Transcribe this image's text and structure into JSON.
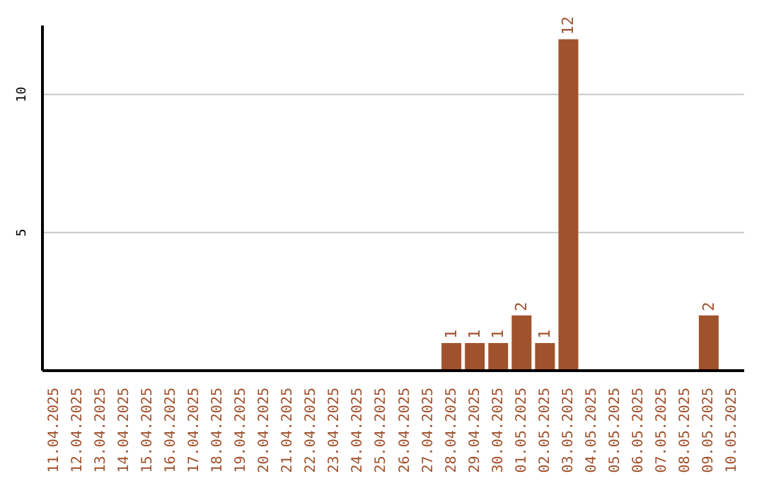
{
  "chart_data": {
    "type": "bar",
    "categories": [
      "11.04.2025",
      "12.04.2025",
      "13.04.2025",
      "14.04.2025",
      "15.04.2025",
      "16.04.2025",
      "17.04.2025",
      "18.04.2025",
      "19.04.2025",
      "20.04.2025",
      "21.04.2025",
      "22.04.2025",
      "23.04.2025",
      "24.04.2025",
      "25.04.2025",
      "26.04.2025",
      "27.04.2025",
      "28.04.2025",
      "29.04.2025",
      "30.04.2025",
      "01.05.2025",
      "02.05.2025",
      "03.05.2025",
      "04.05.2025",
      "05.05.2025",
      "06.05.2025",
      "07.05.2025",
      "08.05.2025",
      "09.05.2025",
      "10.05.2025"
    ],
    "values": [
      0,
      0,
      0,
      0,
      0,
      0,
      0,
      0,
      0,
      0,
      0,
      0,
      0,
      0,
      0,
      0,
      0,
      1,
      1,
      1,
      2,
      1,
      12,
      0,
      0,
      0,
      0,
      0,
      2,
      0
    ],
    "value_labels": [
      null,
      null,
      null,
      null,
      null,
      null,
      null,
      null,
      null,
      null,
      null,
      null,
      null,
      null,
      null,
      null,
      null,
      "1",
      "1",
      "1",
      "2",
      "1",
      "12",
      null,
      null,
      null,
      null,
      null,
      "2",
      null
    ],
    "color": "#a0522d",
    "ylim": [
      0,
      12.5
    ],
    "yticks": [
      5,
      10
    ],
    "grid": "y"
  }
}
